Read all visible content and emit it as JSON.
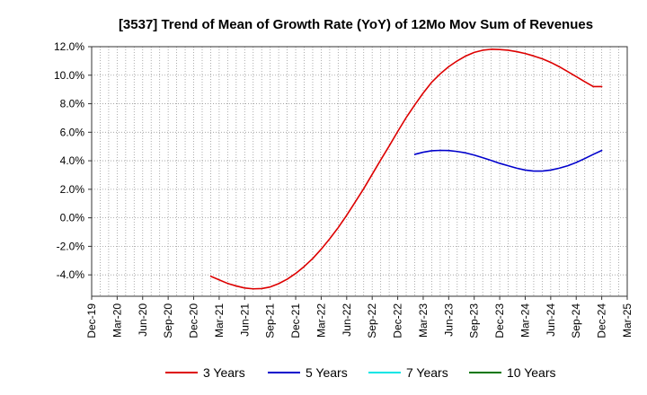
{
  "chart_data": {
    "type": "line",
    "title": "[3537]  Trend of Mean of Growth Rate (YoY) of 12Mo Mov Sum of Revenues",
    "xlabel": "",
    "ylabel": "",
    "ylim": [
      -5.5,
      12.0
    ],
    "y_ticks": [
      12.0,
      10.0,
      8.0,
      6.0,
      4.0,
      2.0,
      0.0,
      -2.0,
      -4.0
    ],
    "y_tick_labels": [
      "12.0%",
      "10.0%",
      "8.0%",
      "6.0%",
      "4.0%",
      "2.0%",
      "0.0%",
      "-2.0%",
      "-4.0%"
    ],
    "x_tick_labels": [
      "Dec-19",
      "Mar-20",
      "Jun-20",
      "Sep-20",
      "Dec-20",
      "Mar-21",
      "Jun-21",
      "Sep-21",
      "Dec-21",
      "Mar-22",
      "Jun-22",
      "Sep-22",
      "Dec-22",
      "Mar-23",
      "Jun-23",
      "Sep-23",
      "Dec-23",
      "Mar-24",
      "Jun-24",
      "Sep-24",
      "Dec-24",
      "Mar-25"
    ],
    "grid": true,
    "legend_position": "bottom",
    "series": [
      {
        "name": "3 Years",
        "color": "#dd0000",
        "x": [
          4.67,
          5,
          5.33,
          5.67,
          6,
          6.33,
          6.67,
          7,
          7.33,
          7.67,
          8,
          8.33,
          8.67,
          9,
          9.33,
          9.67,
          10,
          10.33,
          10.67,
          11,
          11.33,
          11.67,
          12,
          12.33,
          12.67,
          13,
          13.33,
          13.67,
          14,
          14.33,
          14.67,
          15,
          15.33,
          15.67,
          16,
          16.33,
          16.67,
          17,
          17.33,
          17.67,
          18,
          18.33,
          18.67,
          19,
          19.33,
          19.67,
          20
        ],
        "y": [
          -4.1,
          -4.35,
          -4.6,
          -4.78,
          -4.92,
          -4.98,
          -4.96,
          -4.85,
          -4.62,
          -4.3,
          -3.9,
          -3.42,
          -2.85,
          -2.2,
          -1.48,
          -0.68,
          0.18,
          1.1,
          2.05,
          3.05,
          4.05,
          5.05,
          6.05,
          7.02,
          7.92,
          8.75,
          9.5,
          10.1,
          10.6,
          11.0,
          11.35,
          11.6,
          11.75,
          11.82,
          11.8,
          11.75,
          11.65,
          11.52,
          11.35,
          11.15,
          10.9,
          10.6,
          10.25,
          9.9,
          9.55,
          9.2,
          9.2
        ]
      },
      {
        "name": "5 Years",
        "color": "#0000cc",
        "x": [
          12.67,
          13,
          13.33,
          13.67,
          14,
          14.33,
          14.67,
          15,
          15.33,
          15.67,
          16,
          16.33,
          16.67,
          17,
          17.33,
          17.67,
          18,
          18.33,
          18.67,
          19,
          19.33,
          19.67,
          20
        ],
        "y": [
          4.45,
          4.6,
          4.7,
          4.73,
          4.72,
          4.65,
          4.55,
          4.4,
          4.22,
          4.02,
          3.82,
          3.65,
          3.48,
          3.35,
          3.28,
          3.28,
          3.35,
          3.48,
          3.65,
          3.88,
          4.15,
          4.45,
          4.72
        ]
      },
      {
        "name": "7 Years",
        "color": "#00e5e5",
        "x": [],
        "y": []
      },
      {
        "name": "10 Years",
        "color": "#007700",
        "x": [],
        "y": []
      }
    ]
  }
}
